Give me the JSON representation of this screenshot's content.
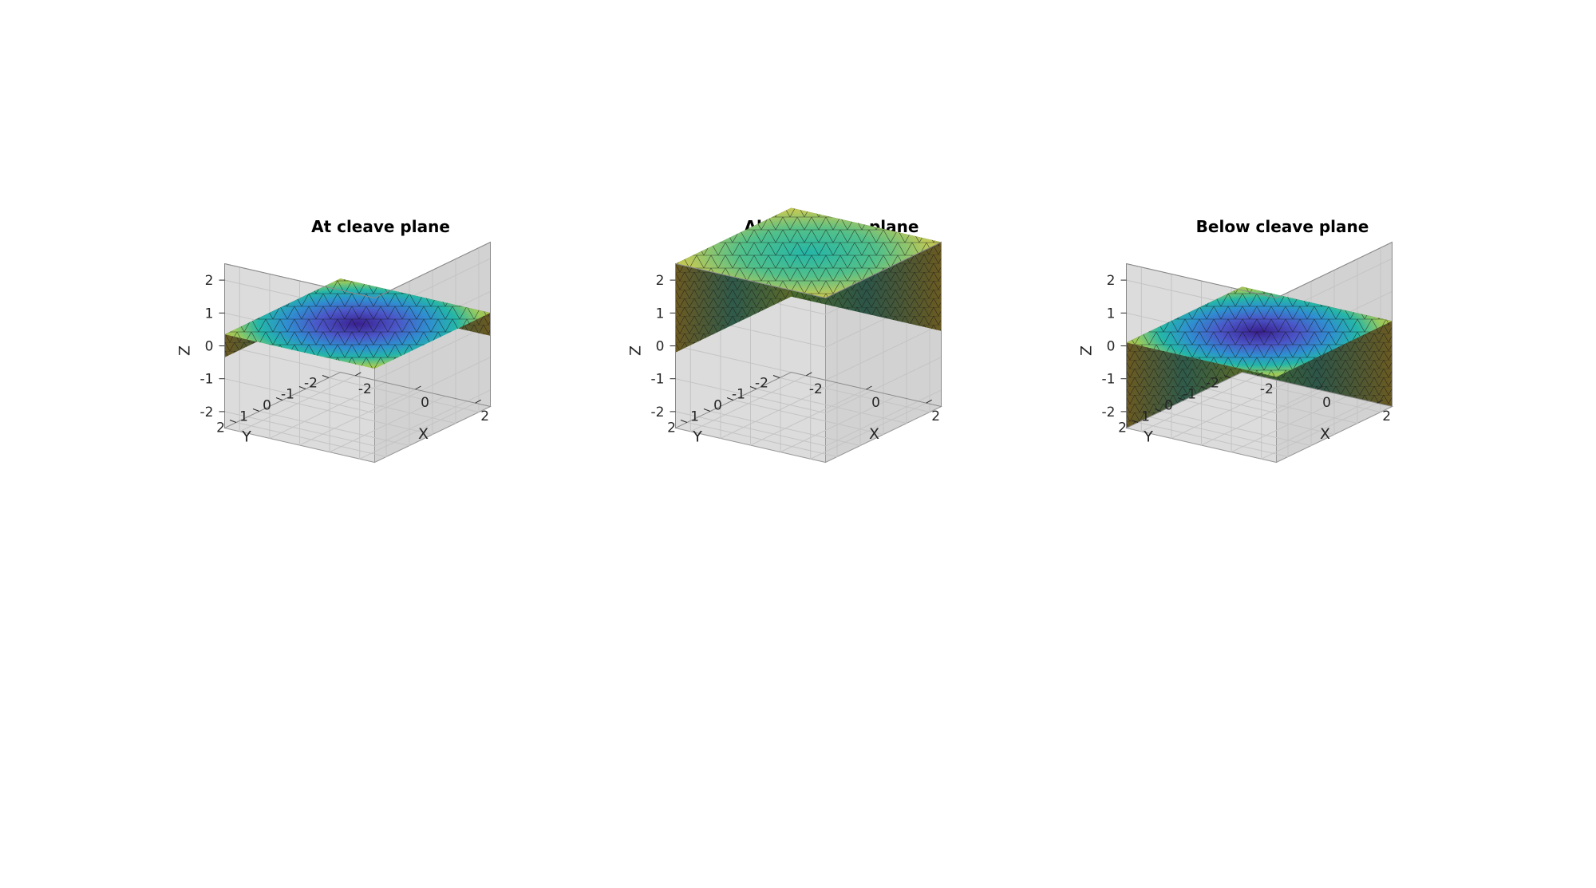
{
  "panels": [
    {
      "title": "At cleave plane",
      "mode": "at",
      "xlabel": "X",
      "ylabel": "Y",
      "zlabel": "Z",
      "x_ticks": [
        "-2",
        "0",
        "2"
      ],
      "y_ticks": [
        "2",
        "1",
        "0",
        "-1",
        "-2"
      ],
      "z_ticks": [
        "2",
        "1",
        "0",
        "-1",
        "-2"
      ]
    },
    {
      "title": "Above cleave plane",
      "mode": "above",
      "xlabel": "X",
      "ylabel": "Y",
      "zlabel": "Z",
      "x_ticks": [
        "-2",
        "0",
        "2"
      ],
      "y_ticks": [
        "2",
        "1",
        "0",
        "-1",
        "-2"
      ],
      "z_ticks": [
        "2",
        "1",
        "0",
        "-1",
        "-2"
      ]
    },
    {
      "title": "Below cleave plane",
      "mode": "below",
      "xlabel": "X",
      "ylabel": "Y",
      "zlabel": "Z",
      "x_ticks": [
        "-2",
        "0",
        "2"
      ],
      "y_ticks": [
        "2",
        "1",
        "0",
        "-1",
        "-2"
      ],
      "z_ticks": [
        "2",
        "1",
        "0",
        "-1",
        "-2"
      ]
    }
  ],
  "colors": {
    "axes_background": "#e6e6e6",
    "colormap": [
      "#3a1f8f",
      "#4b57c8",
      "#2f8fd0",
      "#24b6a8",
      "#7ccd6a",
      "#e0d24a",
      "#c9a43a"
    ],
    "side_face": "#5b4a1f",
    "side_face_light": "#6b6420"
  }
}
